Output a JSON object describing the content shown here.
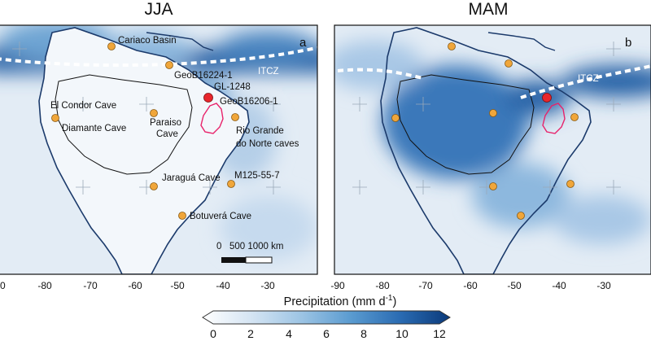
{
  "colors": {
    "ocean": "#dfe9f3",
    "high_precip": "#2a65a8",
    "coast": "#1b3a6b",
    "site": "#f0a63a",
    "site_stroke": "#8a5a12",
    "highlight_site": "#e8262c",
    "basin": "#e8226a",
    "itcz": "#ffffff"
  },
  "panels": {
    "left": {
      "season": "JJA",
      "letter": "a",
      "itcz_label": "ITCZ",
      "scalebar": {
        "label": "0   500 1000 km"
      },
      "sites": [
        {
          "name": "Cariaco Basin",
          "lon": -65.2,
          "lat": 10.5
        },
        {
          "name": "GeoB16224-1",
          "lon": -52.1,
          "lat": 7.0
        },
        {
          "name": "GL-1248",
          "lon": -43.6,
          "lat": -0.9
        },
        {
          "name": "GeoB16206-1",
          "lon": -43.8,
          "lat": -1.6
        },
        {
          "name": "El Condor Cave",
          "lon": -77.3,
          "lat": -5.9
        },
        {
          "name": "Diamante Cave",
          "lon": -77.5,
          "lat": -5.7
        },
        {
          "name": "Paraiso Cave",
          "lon": -55.4,
          "lat": -4.1
        },
        {
          "name": "Rio Grande do Norte caves",
          "lon": -37.7,
          "lat": -5.6
        },
        {
          "name": "Jaraguá Cave",
          "lon": -56.6,
          "lat": -21.1
        },
        {
          "name": "M125-55-7",
          "lon": -38.0,
          "lat": -20.4
        },
        {
          "name": "Botuverá Cave",
          "lon": -49.2,
          "lat": -27.2
        }
      ],
      "xticks": [
        "-80",
        "-70",
        "-60",
        "-50",
        "-40",
        "-30"
      ],
      "xtick_partial": "0"
    },
    "right": {
      "season": "MAM",
      "letter": "b",
      "itcz_label": "ITCZ",
      "sites": [
        {
          "lon": -65.2,
          "lat": 10.5
        },
        {
          "lon": -52.1,
          "lat": 7.0
        },
        {
          "lon": -43.6,
          "lat": -0.9
        },
        {
          "lon": -77.5,
          "lat": -5.7
        },
        {
          "lon": -55.4,
          "lat": -4.1
        },
        {
          "lon": -37.7,
          "lat": -5.6
        },
        {
          "lon": -56.6,
          "lat": -21.1
        },
        {
          "lon": -38.0,
          "lat": -20.4
        },
        {
          "lon": -49.2,
          "lat": -27.2
        }
      ],
      "xticks": [
        "-90",
        "-80",
        "-70",
        "-60",
        "-50",
        "-40",
        "-30"
      ]
    }
  },
  "colorbar": {
    "title_prefix": "Precipitation (mm d",
    "title_sup": "-1",
    "title_suffix": ")",
    "ticks": [
      "0",
      "2",
      "4",
      "6",
      "8",
      "10",
      "12"
    ],
    "min": 0,
    "max": 12
  }
}
